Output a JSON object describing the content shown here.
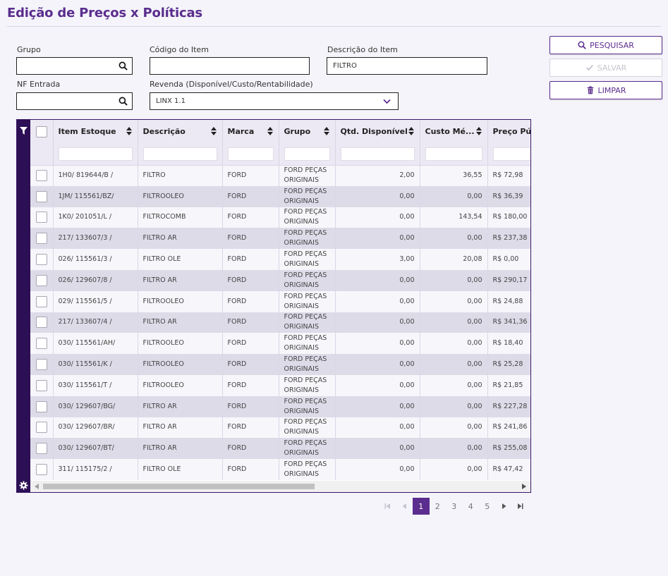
{
  "page": {
    "title": "Edição de Preços x Políticas"
  },
  "filters": {
    "grupo_label": "Grupo",
    "grupo_value": "",
    "codigo_label": "Código do Item",
    "codigo_value": "",
    "descricao_label": "Descrição do Item",
    "descricao_value": "FILTRO",
    "nf_label": "NF Entrada",
    "nf_value": "",
    "revenda_label": "Revenda (Disponível/Custo/Rentabilidade)",
    "revenda_value": "LINX 1.1"
  },
  "actions": {
    "search_label": "PESQUISAR",
    "save_label": "SALVAR",
    "clear_label": "LIMPAR"
  },
  "grid": {
    "columns": [
      "Item Estoque",
      "Descrição",
      "Marca",
      "Grupo",
      "Qtd. Disponível",
      "Custo Mé...",
      "Preço Púb"
    ],
    "rows": [
      {
        "item": "1H0/ 819644/B /",
        "descricao": "FILTRO",
        "marca": "FORD",
        "grupo": "FORD PEÇAS ORIGINAIS",
        "qtd": "2,00",
        "custo": "36,55",
        "preco": "R$ 72,98"
      },
      {
        "item": "1JM/ 115561/BZ/",
        "descricao": "FILTROOLEO",
        "marca": "FORD",
        "grupo": "FORD PEÇAS ORIGINAIS",
        "qtd": "0,00",
        "custo": "0,00",
        "preco": "R$ 36,39"
      },
      {
        "item": "1K0/ 201051/L /",
        "descricao": "FILTROCOMB",
        "marca": "FORD",
        "grupo": "FORD PEÇAS ORIGINAIS",
        "qtd": "0,00",
        "custo": "143,54",
        "preco": "R$ 180,00"
      },
      {
        "item": "217/ 133607/3 /",
        "descricao": "FILTRO AR",
        "marca": "FORD",
        "grupo": "FORD PEÇAS ORIGINAIS",
        "qtd": "0,00",
        "custo": "0,00",
        "preco": "R$ 237,38"
      },
      {
        "item": "026/ 115561/3 /",
        "descricao": "FILTRO OLE",
        "marca": "FORD",
        "grupo": "FORD PEÇAS ORIGINAIS",
        "qtd": "3,00",
        "custo": "20,08",
        "preco": "R$ 0,00"
      },
      {
        "item": "026/ 129607/8 /",
        "descricao": "FILTRO AR",
        "marca": "FORD",
        "grupo": "FORD PEÇAS ORIGINAIS",
        "qtd": "0,00",
        "custo": "0,00",
        "preco": "R$ 290,17"
      },
      {
        "item": "029/ 115561/5 /",
        "descricao": "FILTROOLEO",
        "marca": "FORD",
        "grupo": "FORD PEÇAS ORIGINAIS",
        "qtd": "0,00",
        "custo": "0,00",
        "preco": "R$ 24,88"
      },
      {
        "item": "217/ 133607/4 /",
        "descricao": "FILTRO AR",
        "marca": "FORD",
        "grupo": "FORD PEÇAS ORIGINAIS",
        "qtd": "0,00",
        "custo": "0,00",
        "preco": "R$ 341,36"
      },
      {
        "item": "030/ 115561/AH/",
        "descricao": "FILTROOLEO",
        "marca": "FORD",
        "grupo": "FORD PEÇAS ORIGINAIS",
        "qtd": "0,00",
        "custo": "0,00",
        "preco": "R$ 18,40"
      },
      {
        "item": "030/ 115561/K /",
        "descricao": "FILTROOLEO",
        "marca": "FORD",
        "grupo": "FORD PEÇAS ORIGINAIS",
        "qtd": "0,00",
        "custo": "0,00",
        "preco": "R$ 25,28"
      },
      {
        "item": "030/ 115561/T /",
        "descricao": "FILTROOLEO",
        "marca": "FORD",
        "grupo": "FORD PEÇAS ORIGINAIS",
        "qtd": "0,00",
        "custo": "0,00",
        "preco": "R$ 21,85"
      },
      {
        "item": "030/ 129607/BG/",
        "descricao": "FILTRO AR",
        "marca": "FORD",
        "grupo": "FORD PEÇAS ORIGINAIS",
        "qtd": "0,00",
        "custo": "0,00",
        "preco": "R$ 227,28"
      },
      {
        "item": "030/ 129607/BR/",
        "descricao": "FILTRO AR",
        "marca": "FORD",
        "grupo": "FORD PEÇAS ORIGINAIS",
        "qtd": "0,00",
        "custo": "0,00",
        "preco": "R$ 241,86"
      },
      {
        "item": "030/ 129607/BT/",
        "descricao": "FILTRO AR",
        "marca": "FORD",
        "grupo": "FORD PEÇAS ORIGINAIS",
        "qtd": "0,00",
        "custo": "0,00",
        "preco": "R$ 255,08"
      },
      {
        "item": "311/ 115175/2 /",
        "descricao": "FILTRO OLE",
        "marca": "FORD",
        "grupo": "FORD PEÇAS ORIGINAIS",
        "qtd": "0,00",
        "custo": "0,00",
        "preco": "R$ 47,42"
      }
    ]
  },
  "pager": {
    "pages": [
      "1",
      "2",
      "3",
      "4",
      "5"
    ],
    "current": "1"
  },
  "colors": {
    "accent": "#5b2d8e",
    "sidebar": "#2d0f55",
    "row_alt": "#dedbe9"
  }
}
